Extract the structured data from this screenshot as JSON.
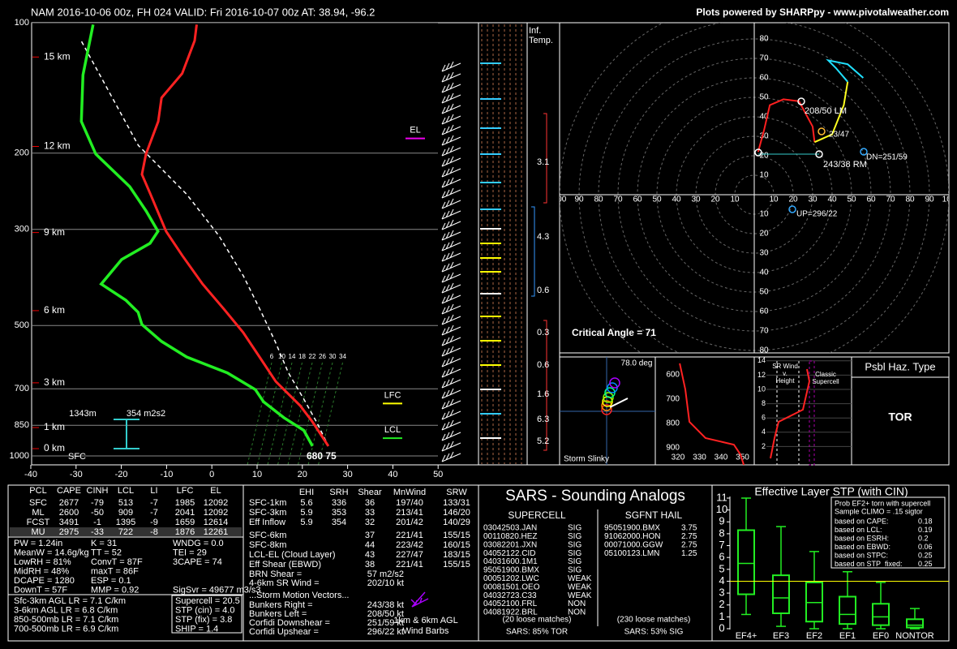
{
  "header": {
    "title": "NAM 2016-10-06 00z, FH 024   VALID: Fri 2016-10-07 00z   AT: 38.94, -96.2",
    "credit": "Plots powered by SHARPpy - www.pivotalweather.com"
  },
  "skewt": {
    "pressure_ticks": [
      100,
      200,
      300,
      500,
      700,
      850,
      1000
    ],
    "temp_ticks": [
      -40,
      -30,
      -20,
      -10,
      0,
      10,
      20,
      30,
      40,
      50
    ],
    "heights": [
      {
        "label": "15 km",
        "pressure": 120
      },
      {
        "label": "12 km",
        "pressure": 193
      },
      {
        "label": "9 km",
        "pressure": 305
      },
      {
        "label": "6 km",
        "pressure": 462
      },
      {
        "label": "3 km",
        "pressure": 678
      },
      {
        "label": "1 km",
        "pressure": 860
      },
      {
        "label": "0 km",
        "pressure": 962
      }
    ],
    "temperature": {
      "pressure": [
        949,
        890,
        834,
        765,
        673,
        591,
        519,
        456,
        401,
        345,
        303,
        249,
        224,
        201,
        169,
        149,
        131,
        110,
        101
      ],
      "values": [
        21.6,
        17.2,
        12.7,
        6.4,
        -4.3,
        -13.3,
        -22.3,
        -32.1,
        -42,
        -52.7,
        -61.7,
        -73.3,
        -79.6,
        -83.2,
        -87.7,
        -92.2,
        -93,
        -97.5,
        -100.6
      ]
    },
    "dewpoint": {
      "pressure": [
        949,
        873,
        816,
        750,
        703,
        643,
        591,
        544,
        497,
        466,
        437,
        401,
        352,
        323,
        303,
        272,
        239,
        201,
        169,
        132,
        101
      ],
      "values": [
        18.1,
        12.7,
        5.5,
        -2.5,
        -7,
        -16.9,
        -29.4,
        -38.4,
        -46.5,
        -50,
        -55.4,
        -64.4,
        -65.3,
        -62.6,
        -63.5,
        -70.6,
        -79.6,
        -94.3,
        -104.7,
        -114.6,
        -123.5
      ]
    },
    "parcel": {
      "pressure": [
        923,
        834,
        736,
        643,
        544,
        456,
        384,
        310,
        249,
        192,
        110
      ],
      "values": [
        19.9,
        13.6,
        5.5,
        -3.4,
        -13.3,
        -24.1,
        -34.8,
        -49.1,
        -65.3,
        -86.8,
        -122.6
      ]
    },
    "el_label": "EL",
    "el_pressure": 185,
    "lfc_label": "LFC",
    "lfc_pressure": 757,
    "lcl_label": "LCL",
    "lcl_pressure": 910,
    "inflow_depth": "1343m",
    "inflow_srh": "354 m2s2",
    "sfc_label": "SFC",
    "sfc_dewpoint": "680",
    "sfc_temp": "75",
    "mixing_ratios": [
      6,
      10,
      14,
      18,
      22,
      26,
      30,
      34
    ]
  },
  "inferred": {
    "title": [
      "Inf.",
      "Temp."
    ],
    "labels": [
      "3.1",
      "4.3",
      "0.6",
      "0.3",
      "0.6",
      "1.6",
      "6.3",
      "5.2"
    ]
  },
  "hodograph": {
    "v_ticks": [
      10,
      20,
      30,
      40,
      50,
      60,
      70,
      80
    ],
    "u_ticks": [
      10,
      20,
      30,
      40,
      50,
      60,
      70,
      80,
      90,
      100
    ],
    "trace": [
      {
        "color": "#ff2020",
        "u": [
          2,
          5,
          8,
          15,
          23,
          30,
          31
        ],
        "v": [
          22,
          33,
          46,
          49,
          48,
          35,
          27
        ]
      },
      {
        "color": "#ffff20",
        "u": [
          31,
          40,
          46,
          48
        ],
        "v": [
          27,
          31,
          46,
          58
        ]
      },
      {
        "color": "#20e0ff",
        "u": [
          48,
          42,
          38,
          48,
          56
        ],
        "v": [
          58,
          65,
          69,
          67,
          60
        ]
      }
    ],
    "lm": "208/50 LM",
    "rm": "243/38 RM",
    "dn": "DN=251/59",
    "up": "UP=296/22",
    "mean": "23/47",
    "critical_angle": "Critical Angle = 71"
  },
  "slinky": {
    "angle": "78.0 deg",
    "title": "Storm Slinky"
  },
  "theta": {
    "pressure_ticks": [
      600,
      700,
      800,
      900
    ],
    "theta_ticks": [
      320,
      330,
      340,
      350
    ],
    "pressure": [
      553,
      660,
      793,
      860,
      887,
      927,
      970
    ],
    "theta": [
      320.8,
      323.4,
      325.3,
      332.8,
      346,
      349,
      350.6
    ]
  },
  "srwind": {
    "title": [
      "SR Wind",
      "v.",
      "Height"
    ],
    "label": [
      "Classic",
      "Supercell"
    ],
    "height_ticks": [
      2,
      4,
      6,
      8,
      10,
      12,
      14
    ]
  },
  "hazard": {
    "title": "Psbl Haz. Type",
    "type": "TOR"
  },
  "thermo": {
    "columns": [
      "PCL",
      "CAPE",
      "CINH",
      "LCL",
      "LI",
      "LFC",
      "EL"
    ],
    "rows": [
      [
        "SFC",
        2677,
        -79,
        513,
        -7,
        1985,
        12092
      ],
      [
        "ML",
        2600,
        -50,
        909,
        -7,
        2041,
        12092
      ],
      [
        "FCST",
        3491,
        -1,
        1395,
        -9,
        1659,
        12614
      ],
      [
        "MU",
        2975,
        -33,
        722,
        -8,
        1876,
        12261
      ]
    ],
    "indices": [
      [
        "PW = 1.24in",
        "K = 31",
        "WNDG = 0.0"
      ],
      [
        "MeanW = 14.6g/kg",
        "TT = 52",
        "TEI = 29"
      ],
      [
        "LowRH = 81%",
        "ConvT = 87F",
        "3CAPE = 74"
      ],
      [
        "MidRH = 48%",
        "maxT = 86F"
      ],
      [
        "DCAPE = 1280",
        "ESP = 0.1"
      ],
      [
        "DownT = 57F",
        "MMP = 0.92",
        "SigSvr = 49677 m3/s3"
      ]
    ],
    "lapse_rates": [
      "Sfc-3km AGL LR = 7.1 C/km",
      "3-6km AGL LR = 6.8 C/km",
      "850-500mb LR = 7.1 C/km",
      "700-500mb LR = 6.9 C/km"
    ],
    "composites": [
      "Supercell = 20.5",
      "STP (cin) = 4.0",
      "STP (fix) = 3.8",
      "SHIP = 1.4"
    ]
  },
  "kinematics": {
    "columns": [
      "EHI",
      "SRH",
      "Shear",
      "MnWind",
      "SRW"
    ],
    "rows": [
      {
        "name": "SFC-1km",
        "EHI": 5.6,
        "SRH": 336,
        "Shear": 36,
        "MnWind": "197/40",
        "SRW": "133/31"
      },
      {
        "name": "SFC-3km",
        "EHI": 5.9,
        "SRH": 353,
        "Shear": 33,
        "MnWind": "213/41",
        "SRW": "146/20"
      },
      {
        "name": "Eff Inflow",
        "EHI": 5.9,
        "SRH": 354,
        "Shear": 32,
        "MnWind": "201/42",
        "SRW": "140/29"
      },
      {
        "name": "SFC-6km",
        "Shear": 37,
        "MnWind": "221/41",
        "SRW": "155/15"
      },
      {
        "name": "SFC-8km",
        "Shear": 44,
        "MnWind": "223/42",
        "SRW": "160/15"
      },
      {
        "name": "LCL-EL (Cloud Layer)",
        "Shear": 43,
        "MnWind": "227/47",
        "SRW": "183/15"
      },
      {
        "name": "Eff Shear (EBWD)",
        "Shear": 38,
        "MnWind": "221/41",
        "SRW": "155/15"
      }
    ],
    "params": [
      [
        "BRN Shear =",
        "57 m2/s2"
      ],
      [
        "4-6km SR Wind =",
        "202/10 kt"
      ]
    ],
    "motion_title": "...Storm Motion Vectors...",
    "motions": [
      [
        "Bunkers Right =",
        "243/38 kt"
      ],
      [
        "Bunkers Left =",
        "208/50 kt"
      ],
      [
        "Corfidi Downshear =",
        "251/59 kt"
      ],
      [
        "Corfidi Upshear =",
        "296/22 kt"
      ]
    ],
    "barbs_label": [
      "1km & 6km AGL",
      "Wind Barbs"
    ]
  },
  "sars": {
    "title": "SARS - Sounding Analogs",
    "supercell_title": "SUPERCELL",
    "hail_title": "SGFNT HAIL",
    "supercell": [
      [
        "03042503.JAN",
        "SIG"
      ],
      [
        "00110820.HEZ",
        "SIG"
      ],
      [
        "03082201.JXN",
        "SIG"
      ],
      [
        "04052122.CID",
        "SIG"
      ],
      [
        "04031600.1M1",
        "SIG"
      ],
      [
        "95051900.BMX",
        "SIG"
      ],
      [
        "00051202.LWC",
        "WEAK"
      ],
      [
        "00081501.OEO",
        "WEAK"
      ],
      [
        "04032723.C33",
        "WEAK"
      ],
      [
        "04052100.FRL",
        "NON"
      ],
      [
        "04081922.BRL",
        "NON"
      ]
    ],
    "hail": [
      [
        "95051900.BMX",
        3.75
      ],
      [
        "91062000.HON",
        2.75
      ],
      [
        "00071000.GGW",
        2.75
      ],
      [
        "05100123.LMN",
        1.25
      ]
    ],
    "supercell_matches": "(20 loose matches)",
    "supercell_result": "SARS: 85% TOR",
    "hail_matches": "(230 loose matches)",
    "hail_result": "SARS: 53% SIG"
  },
  "stp": {
    "title": "Effective Layer STP (with CIN)",
    "ylim": [
      0,
      11
    ],
    "yticks": [
      0,
      1,
      2,
      3,
      4,
      5,
      6,
      7,
      8,
      9,
      10,
      11
    ],
    "stp_line": 4,
    "categories": [
      "EF4+",
      "EF3",
      "EF2",
      "EF1",
      "EF0",
      "NONTOR"
    ],
    "boxes": [
      {
        "low": 1.2,
        "q1": 2.9,
        "median": 5.5,
        "q3": 8.3,
        "high": 11
      },
      {
        "low": 0.2,
        "q1": 1.3,
        "median": 2.6,
        "q3": 4.5,
        "high": 8.6
      },
      {
        "low": 0,
        "q1": 0.6,
        "median": 2.2,
        "q3": 3.9,
        "high": 6.5
      },
      {
        "low": 0,
        "q1": 0.4,
        "median": 1.2,
        "q3": 2.7,
        "high": 4.8
      },
      {
        "low": 0,
        "q1": 0.3,
        "median": 1,
        "q3": 2.1,
        "high": 3.9
      },
      {
        "low": 0,
        "q1": 0.1,
        "median": 0.3,
        "q3": 0.8,
        "high": 1.7
      }
    ],
    "prob_title": [
      "Prob EF2+ torn with supercell",
      "Sample CLIMO = .15 sigtor"
    ],
    "prob_rows": [
      [
        "based on CAPE:",
        0.18
      ],
      [
        "based on LCL:",
        0.19
      ],
      [
        "based on ESRH:",
        0.2
      ],
      [
        "based on EBWD:",
        0.06
      ],
      [
        "based on STPC:",
        0.25
      ],
      [
        "based on STP_fixed:",
        0.25
      ]
    ]
  }
}
